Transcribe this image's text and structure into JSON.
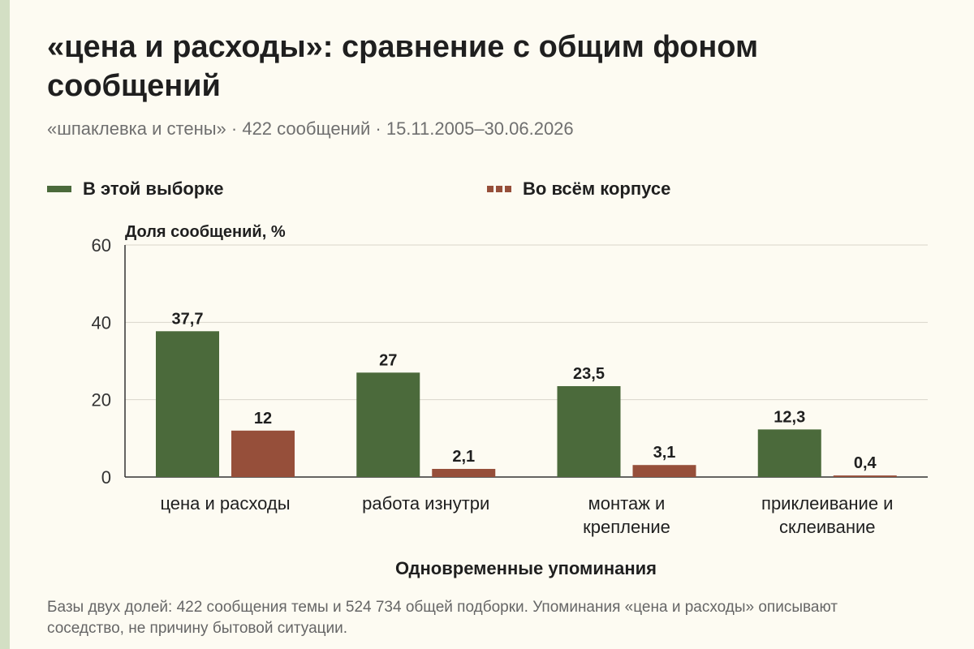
{
  "header": {
    "title": "«цена и расходы»: сравнение с общим фоном сообщений",
    "subtitle": "«шпаклевка и стены» · 422 сообщений · 15.11.2005–30.06.2026"
  },
  "legend": [
    {
      "label": "В этой выборке",
      "color": "#4b6a3b"
    },
    {
      "label": "Во всём корпусе",
      "color": "#964f3a"
    }
  ],
  "footnote": "Базы двух долей: 422 сообщения темы и 524 734 общей подборки. Упоминания «цена и расходы» описывают соседство, не причину бытовой ситуации.",
  "chart_data": {
    "type": "bar",
    "ylabel": "Доля сообщений, %",
    "xlabel": "Одновременные упоминания",
    "ylim": [
      0,
      60
    ],
    "yticks": [
      0,
      20,
      40,
      60
    ],
    "grid": true,
    "legend_position": "top",
    "categories": [
      [
        "цена и расходы"
      ],
      [
        "работа изнутри"
      ],
      [
        "монтаж и",
        "крепление"
      ],
      [
        "приклеивание и",
        "склеивание"
      ]
    ],
    "series": [
      {
        "name": "В этой выборке",
        "color": "#4b6a3b",
        "values": [
          37.7,
          27,
          23.5,
          12.3
        ],
        "labels": [
          "37,7",
          "27",
          "23,5",
          "12,3"
        ]
      },
      {
        "name": "Во всём корпусе",
        "color": "#964f3a",
        "values": [
          12,
          2.1,
          3.1,
          0.4
        ],
        "labels": [
          "12",
          "2,1",
          "3,1",
          "0,4"
        ]
      }
    ]
  }
}
